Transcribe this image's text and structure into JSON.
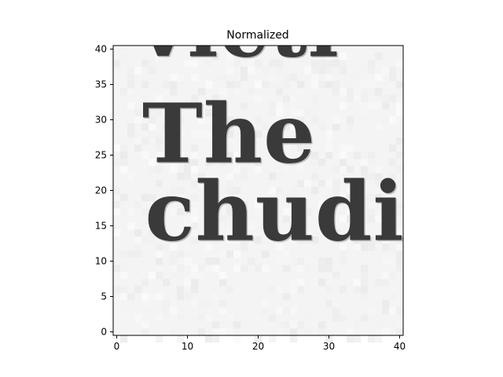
{
  "chart_data": {
    "type": "heatmap",
    "title": "Normalized",
    "xlabel": "",
    "ylabel": "",
    "xlim": [
      -0.5,
      40.5
    ],
    "ylim": [
      40.5,
      -0.5
    ],
    "x_ticks": [
      0,
      10,
      20,
      30,
      40
    ],
    "y_ticks": [
      0,
      5,
      10,
      15,
      20,
      25,
      30,
      35,
      40
    ],
    "colormap": "gray",
    "image_content": {
      "description_lines": [
        {
          "text": "chudi",
          "baseline_row": 13
        },
        {
          "text": "The",
          "baseline_row": 24
        },
        {
          "text": "victi",
          "baseline_row": 39
        }
      ]
    },
    "annotations": [
      {
        "type": "rectangle",
        "x0": 15,
        "y0": 15,
        "x1": 24,
        "y1": 24,
        "color": "#e31a1c"
      }
    ]
  },
  "colors": {
    "axes": "#000000",
    "background": "#ffffff",
    "highlight_box": "#e31a1c"
  }
}
